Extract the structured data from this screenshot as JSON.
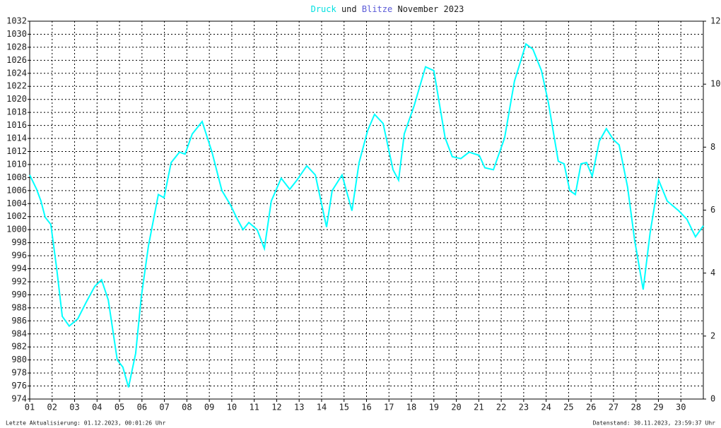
{
  "chart_data": {
    "type": "line",
    "title_parts": [
      {
        "text": "Druck",
        "color": "#00e0e0"
      },
      {
        "text": "und",
        "color": "#202020"
      },
      {
        "text": "Blitze",
        "color": "#5a5ad8"
      },
      {
        "text": "November 2023",
        "color": "#202020"
      }
    ],
    "series": [
      {
        "name": "Druck",
        "color": "#00ffff",
        "x": [
          1.0,
          1.31,
          1.5,
          1.69,
          1.94,
          2.2,
          2.45,
          2.76,
          3.14,
          3.52,
          3.9,
          4.2,
          4.5,
          4.9,
          5.15,
          5.4,
          5.72,
          5.97,
          6.29,
          6.73,
          6.98,
          7.3,
          7.67,
          7.92,
          8.24,
          8.68,
          9.12,
          9.56,
          9.94,
          10.25,
          10.5,
          10.76,
          11.13,
          11.45,
          11.76,
          12.2,
          12.58,
          12.9,
          13.34,
          13.72,
          14.22,
          14.47,
          14.91,
          15.35,
          15.67,
          16.05,
          16.36,
          16.74,
          17.18,
          17.43,
          17.68,
          18.12,
          18.63,
          19.0,
          19.5,
          19.82,
          20.2,
          20.57,
          21.02,
          21.27,
          21.65,
          22.15,
          22.59,
          23.1,
          23.41,
          23.79,
          24.1,
          24.54,
          24.8,
          25.05,
          25.3,
          25.55,
          25.8,
          26.05,
          26.37,
          26.68,
          27.0,
          27.25,
          27.63,
          27.94,
          28.32,
          28.63,
          29.01,
          29.39,
          29.9,
          30.27,
          30.65,
          31.0
        ],
        "values": [
          1008.4,
          1006.2,
          1004.4,
          1001.9,
          1000.8,
          994.1,
          986.7,
          985.2,
          986.3,
          988.9,
          991.3,
          992.3,
          989.2,
          980.0,
          978.9,
          975.8,
          981.0,
          989.7,
          997.5,
          1005.4,
          1004.9,
          1010.3,
          1011.9,
          1011.6,
          1014.7,
          1016.6,
          1011.9,
          1006.0,
          1003.8,
          1001.6,
          1000.0,
          1001.1,
          1000.0,
          997.1,
          1004.4,
          1007.9,
          1006.2,
          1007.6,
          1009.8,
          1008.4,
          1000.4,
          1006.0,
          1008.4,
          1002.9,
          1010.3,
          1015.2,
          1017.7,
          1016.3,
          1009.2,
          1007.6,
          1014.7,
          1019.0,
          1025.0,
          1024.4,
          1014.1,
          1011.2,
          1010.9,
          1011.9,
          1011.4,
          1009.5,
          1009.2,
          1014.1,
          1022.8,
          1028.5,
          1027.7,
          1024.4,
          1019.5,
          1010.5,
          1010.1,
          1006.0,
          1005.4,
          1010.1,
          1010.3,
          1008.2,
          1013.6,
          1015.5,
          1013.8,
          1013.0,
          1006.5,
          998.4,
          990.8,
          999.5,
          1007.6,
          1004.4,
          1002.9,
          1001.6,
          998.9,
          1000.6
        ]
      }
    ],
    "xlim": [
      1,
      31
    ],
    "xticks": [
      {
        "value": 1,
        "label": "01"
      },
      {
        "value": 2,
        "label": "02"
      },
      {
        "value": 3,
        "label": "03"
      },
      {
        "value": 4,
        "label": "04"
      },
      {
        "value": 5,
        "label": "05"
      },
      {
        "value": 6,
        "label": "06"
      },
      {
        "value": 7,
        "label": "07"
      },
      {
        "value": 8,
        "label": "08"
      },
      {
        "value": 9,
        "label": "09"
      },
      10,
      11,
      12,
      13,
      14,
      15,
      16,
      17,
      18,
      19,
      20,
      21,
      22,
      23,
      24,
      25,
      26,
      27,
      28,
      29,
      30
    ],
    "ylim": [
      974,
      1032
    ],
    "yticks": [
      974,
      976,
      978,
      980,
      982,
      984,
      986,
      988,
      990,
      992,
      994,
      996,
      998,
      1000,
      1002,
      1004,
      1006,
      1008,
      1010,
      1012,
      1014,
      1016,
      1018,
      1020,
      1022,
      1024,
      1026,
      1028,
      1030,
      1032
    ],
    "y2lim": [
      0,
      12
    ],
    "y2ticks": [
      0,
      2,
      4,
      6,
      8,
      10,
      12
    ],
    "grid": true,
    "footer_left": "Letzte Aktualisierung: 01.12.2023, 00:01:26 Uhr",
    "footer_right": "Datenstand: 30.11.2023, 23:59:37 Uhr"
  }
}
